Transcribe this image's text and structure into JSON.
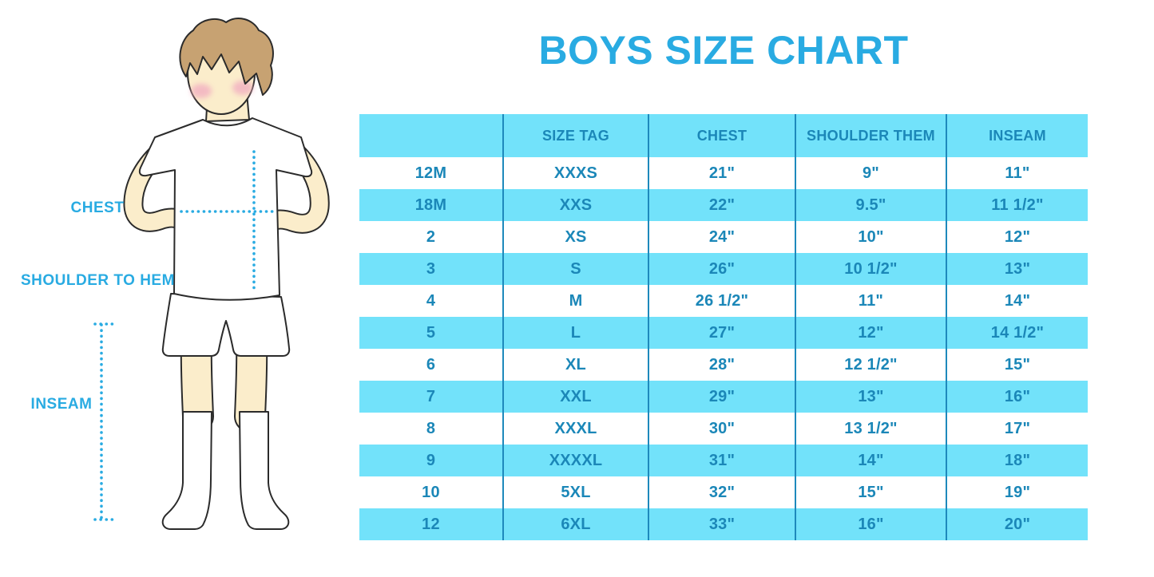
{
  "title": "BOYS SIZE CHART",
  "colors": {
    "accent_blue": "#29ABE2",
    "table_text_blue": "#1B87B8",
    "stripe_background": "#72E2FA",
    "divider_blue": "#1E89BC",
    "skin": "#FBEDCB",
    "hair": "#C7A272",
    "cheek_pink": "#F2AFC1",
    "outline": "#2B2B2B"
  },
  "figure": {
    "labels": {
      "chest": "CHEST",
      "shoulder_to_hem": "SHOULDER TO HEM",
      "inseam": "INSEAM"
    }
  },
  "chart_data": {
    "type": "table",
    "title": "BOYS SIZE CHART",
    "columns": [
      "",
      "SIZE TAG",
      "CHEST",
      "SHOULDER THEM",
      "INSEAM"
    ],
    "rows": [
      [
        "12M",
        "XXXS",
        "21\"",
        "9\"",
        "11\""
      ],
      [
        "18M",
        "XXS",
        "22\"",
        "9.5\"",
        "11 1/2\""
      ],
      [
        "2",
        "XS",
        "24\"",
        "10\"",
        "12\""
      ],
      [
        "3",
        "S",
        "26\"",
        "10 1/2\"",
        "13\""
      ],
      [
        "4",
        "M",
        "26 1/2\"",
        "11\"",
        "14\""
      ],
      [
        "5",
        "L",
        "27\"",
        "12\"",
        "14 1/2\""
      ],
      [
        "6",
        "XL",
        "28\"",
        "12 1/2\"",
        "15\""
      ],
      [
        "7",
        "XXL",
        "29\"",
        "13\"",
        "16\""
      ],
      [
        "8",
        "XXXL",
        "30\"",
        "13 1/2\"",
        "17\""
      ],
      [
        "9",
        "XXXXL",
        "31\"",
        "14\"",
        "18\""
      ],
      [
        "10",
        "5XL",
        "32\"",
        "15\"",
        "19\""
      ],
      [
        "12",
        "6XL",
        "33\"",
        "16\"",
        "20\""
      ]
    ]
  }
}
